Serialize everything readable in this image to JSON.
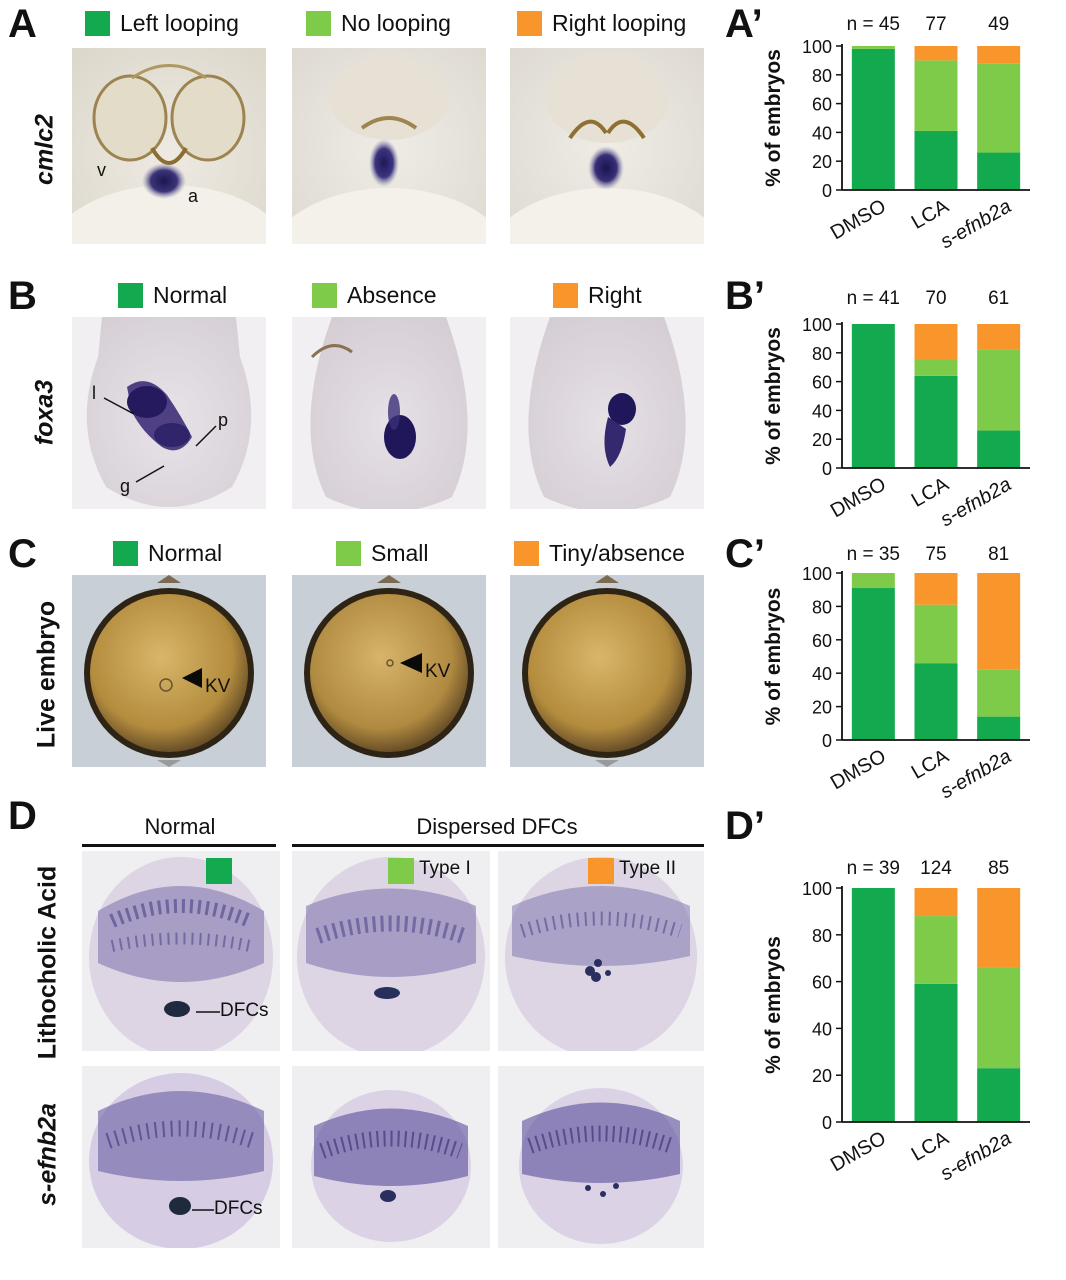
{
  "colors": {
    "left_normal": "#13a94f",
    "middle": "#7ecb4a",
    "right": "#f8962c"
  },
  "panelA": {
    "letter": "A",
    "row_label": "cmlc2",
    "legend": [
      "Left looping",
      "No looping",
      "Right looping"
    ],
    "annotations": [
      "v",
      "a"
    ]
  },
  "panelB": {
    "letter": "B",
    "row_label": "foxa3",
    "legend": [
      "Normal",
      "Absence",
      "Right"
    ],
    "annotations": [
      "l",
      "p",
      "g"
    ]
  },
  "panelC": {
    "letter": "C",
    "row_label": "Live embryo",
    "legend": [
      "Normal",
      "Small",
      "Tiny/absence"
    ],
    "annotations": [
      "KV",
      "KV"
    ]
  },
  "panelD": {
    "letter": "D",
    "row_labels": [
      "Lithocholic Acid",
      "s-efnb2a"
    ],
    "header_normal": "Normal",
    "header_dispersed": "Dispersed DFCs",
    "type_labels": [
      "Type I",
      "Type II"
    ],
    "annotations": [
      "DFCs",
      "DFCs"
    ]
  },
  "chart_data": [
    {
      "type": "bar",
      "letter": "A’",
      "stacked": true,
      "categories": [
        "DMSO",
        "LCA",
        "s-efnb2a"
      ],
      "n_labels": [
        "n = 45",
        "77",
        "49"
      ],
      "ylabel": "% of embryos",
      "ylim": [
        0,
        100
      ],
      "yticks": [
        0,
        20,
        40,
        60,
        80,
        100
      ],
      "series": [
        {
          "color": "#13a94f",
          "values": [
            98,
            41,
            26
          ]
        },
        {
          "color": "#7ecb4a",
          "values": [
            2,
            49,
            62
          ]
        },
        {
          "color": "#f8962c",
          "values": [
            0,
            10,
            12
          ]
        }
      ]
    },
    {
      "type": "bar",
      "letter": "B’",
      "stacked": true,
      "categories": [
        "DMSO",
        "LCA",
        "s-efnb2a"
      ],
      "n_labels": [
        "n = 41",
        "70",
        "61"
      ],
      "ylabel": "% of embryos",
      "ylim": [
        0,
        100
      ],
      "yticks": [
        0,
        20,
        40,
        60,
        80,
        100
      ],
      "series": [
        {
          "color": "#13a94f",
          "values": [
            100,
            64,
            26
          ]
        },
        {
          "color": "#7ecb4a",
          "values": [
            0,
            11,
            56
          ]
        },
        {
          "color": "#f8962c",
          "values": [
            0,
            25,
            18
          ]
        }
      ]
    },
    {
      "type": "bar",
      "letter": "C’",
      "stacked": true,
      "categories": [
        "DMSO",
        "LCA",
        "s-efnb2a"
      ],
      "n_labels": [
        "n = 35",
        "75",
        "81"
      ],
      "ylabel": "% of embryos",
      "ylim": [
        0,
        100
      ],
      "yticks": [
        0,
        20,
        40,
        60,
        80,
        100
      ],
      "series": [
        {
          "color": "#13a94f",
          "values": [
            91,
            46,
            14
          ]
        },
        {
          "color": "#7ecb4a",
          "values": [
            9,
            35,
            28
          ]
        },
        {
          "color": "#f8962c",
          "values": [
            0,
            19,
            58
          ]
        }
      ]
    },
    {
      "type": "bar",
      "letter": "D’",
      "stacked": true,
      "categories": [
        "DMSO",
        "LCA",
        "s-efnb2a"
      ],
      "n_labels": [
        "n = 39",
        "124",
        "85"
      ],
      "ylabel": "% of embryos",
      "ylim": [
        0,
        100
      ],
      "yticks": [
        0,
        20,
        40,
        60,
        80,
        100
      ],
      "series": [
        {
          "color": "#13a94f",
          "values": [
            100,
            59,
            23
          ]
        },
        {
          "color": "#7ecb4a",
          "values": [
            0,
            29,
            43
          ]
        },
        {
          "color": "#f8962c",
          "values": [
            0,
            12,
            34
          ]
        }
      ]
    }
  ]
}
